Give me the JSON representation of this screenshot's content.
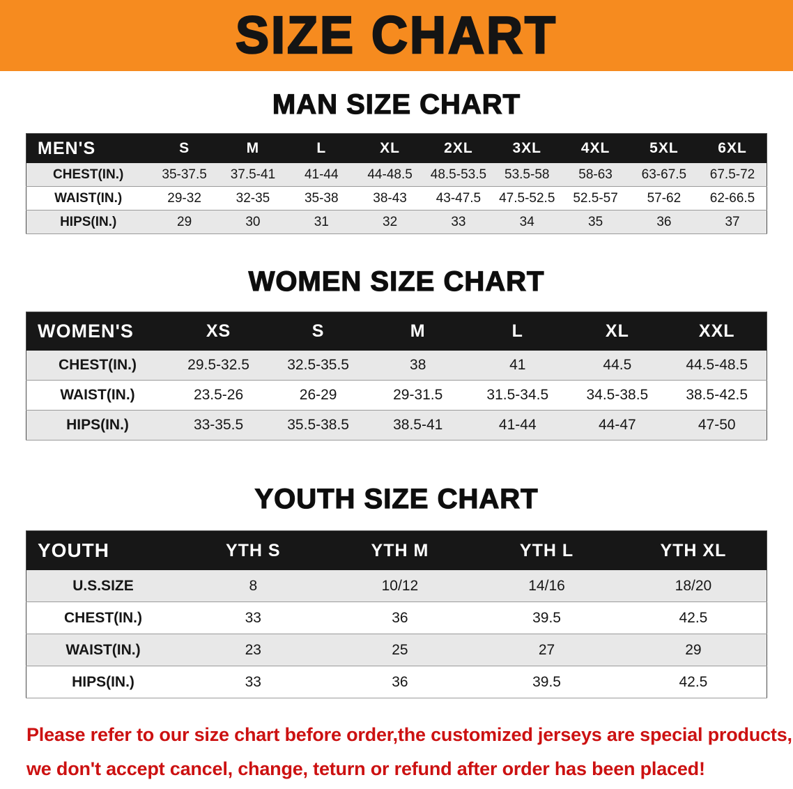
{
  "banner": {
    "title": "SIZE CHART"
  },
  "colors": {
    "banner_orange": "#f68b1f",
    "header_black": "#171717",
    "row_gray": "#e8e8e8",
    "footer_red": "#cc1111"
  },
  "sections": [
    {
      "heading": "MAN SIZE CHART",
      "table": {
        "header": [
          "MEN'S",
          "S",
          "M",
          "L",
          "XL",
          "2XL",
          "3XL",
          "4XL",
          "5XL",
          "6XL"
        ],
        "rows": [
          [
            "CHEST(IN.)",
            "35-37.5",
            "37.5-41",
            "41-44",
            "44-48.5",
            "48.5-53.5",
            "53.5-58",
            "58-63",
            "63-67.5",
            "67.5-72"
          ],
          [
            "WAIST(IN.)",
            "29-32",
            "32-35",
            "35-38",
            "38-43",
            "43-47.5",
            "47.5-52.5",
            "52.5-57",
            "57-62",
            "62-66.5"
          ],
          [
            "HIPS(IN.)",
            "29",
            "30",
            "31",
            "32",
            "33",
            "34",
            "35",
            "36",
            "37"
          ]
        ]
      }
    },
    {
      "heading": "WOMEN SIZE CHART",
      "table": {
        "header": [
          "WOMEN'S",
          "XS",
          "S",
          "M",
          "L",
          "XL",
          "XXL"
        ],
        "rows": [
          [
            "CHEST(IN.)",
            "29.5-32.5",
            "32.5-35.5",
            "38",
            "41",
            "44.5",
            "44.5-48.5"
          ],
          [
            "WAIST(IN.)",
            "23.5-26",
            "26-29",
            "29-31.5",
            "31.5-34.5",
            "34.5-38.5",
            "38.5-42.5"
          ],
          [
            "HIPS(IN.)",
            "33-35.5",
            "35.5-38.5",
            "38.5-41",
            "41-44",
            "44-47",
            "47-50"
          ]
        ]
      }
    },
    {
      "heading": "YOUTH SIZE CHART",
      "table": {
        "header": [
          "YOUTH",
          "YTH S",
          "YTH M",
          "YTH L",
          "YTH XL"
        ],
        "rows": [
          [
            "U.S.SIZE",
            "8",
            "10/12",
            "14/16",
            "18/20"
          ],
          [
            "CHEST(IN.)",
            "33",
            "36",
            "39.5",
            "42.5"
          ],
          [
            "WAIST(IN.)",
            "23",
            "25",
            "27",
            "29"
          ],
          [
            "HIPS(IN.)",
            "33",
            "36",
            "39.5",
            "42.5"
          ]
        ]
      }
    }
  ],
  "footer": {
    "line1": "Please refer to our size chart before order,the customized jerseys are special products,",
    "line2": "we don't accept cancel, change, teturn or refund after order has been placed!"
  }
}
